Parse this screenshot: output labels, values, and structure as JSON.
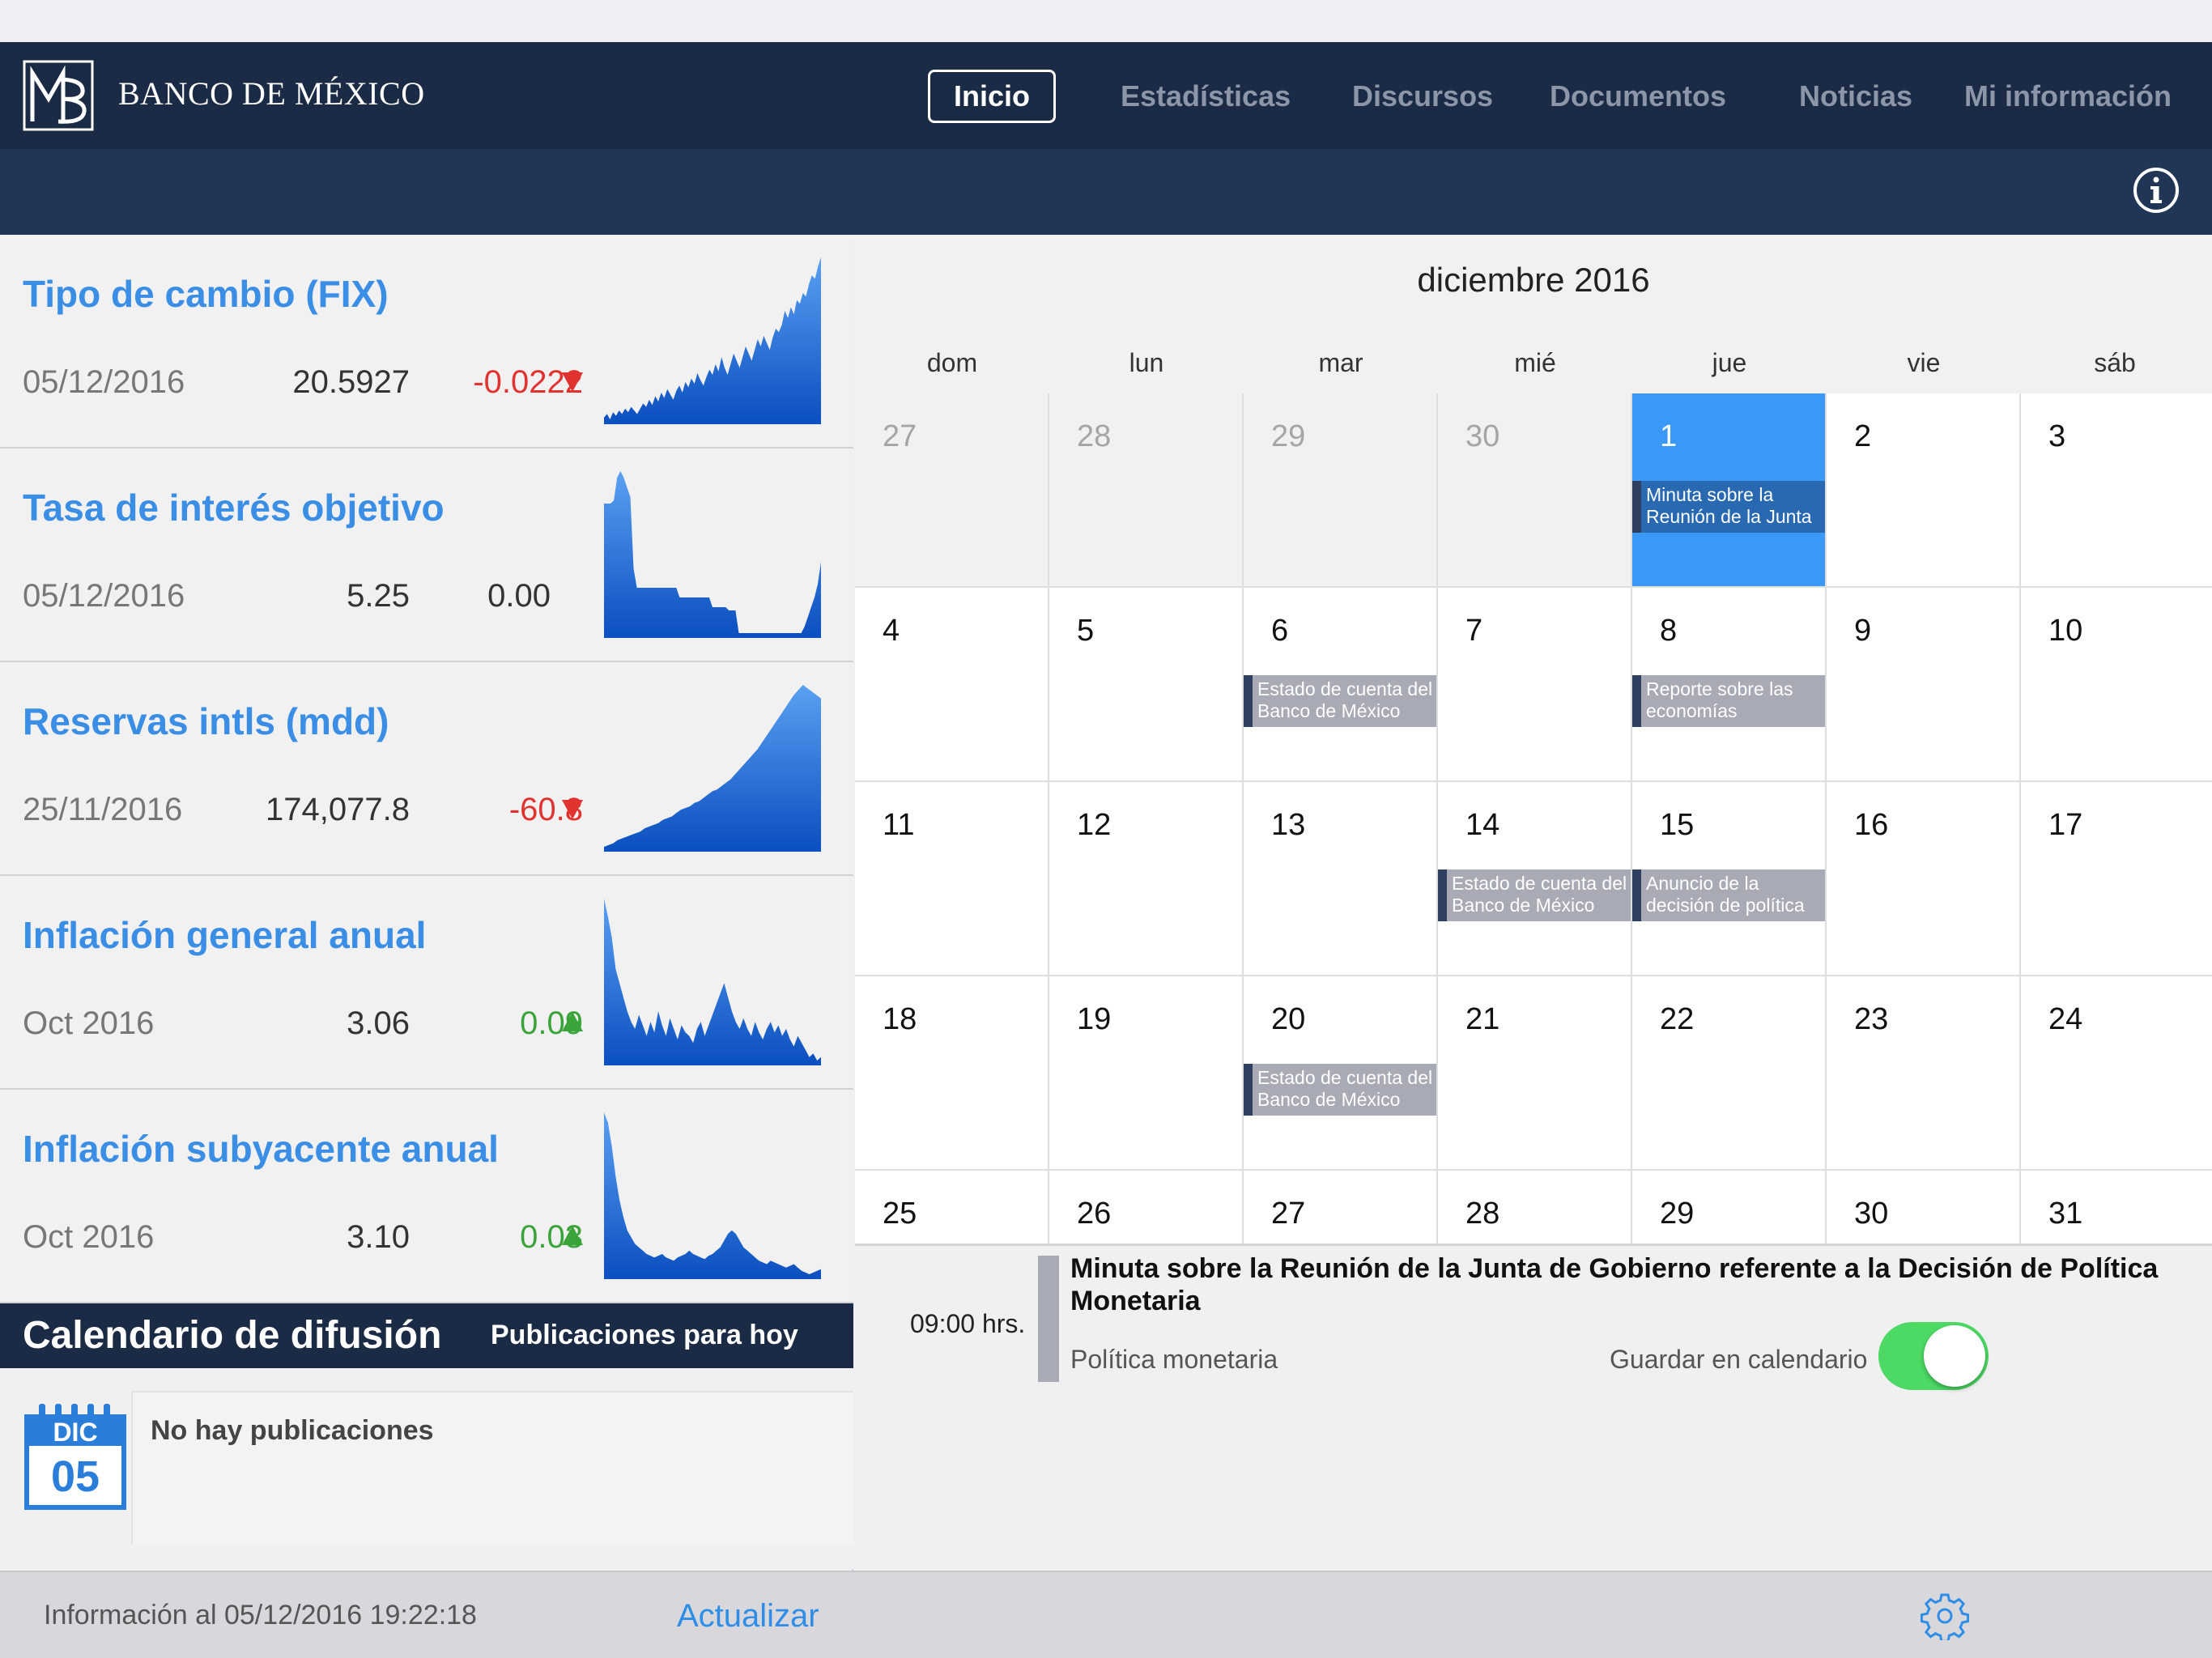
{
  "header": {
    "logo_text": "BANCO DE MÉXICO",
    "tabs": [
      {
        "label": "Inicio",
        "active": true
      },
      {
        "label": "Estadísticas",
        "active": false
      },
      {
        "label": "Discursos",
        "active": false
      },
      {
        "label": "Documentos",
        "active": false
      },
      {
        "label": "Noticias",
        "active": false
      },
      {
        "label": "Mi información",
        "active": false
      }
    ],
    "info_icon": "info-icon"
  },
  "indicators": [
    {
      "title": "Tipo de cambio (FIX)",
      "date": "05/12/2016",
      "value": "20.5927",
      "change": "-0.0222",
      "trend": "down",
      "sparkline": [
        10,
        12,
        9,
        13,
        11,
        14,
        12,
        15,
        13,
        16,
        14,
        12,
        15,
        18,
        16,
        20,
        17,
        22,
        19,
        24,
        21,
        26,
        23,
        20,
        25,
        28,
        24,
        30,
        27,
        32,
        29,
        35,
        31,
        28,
        33,
        37,
        34,
        40,
        36,
        44,
        38,
        34,
        40,
        46,
        42,
        38,
        44,
        50,
        46,
        42,
        48,
        54,
        50,
        56,
        52,
        48,
        55,
        60,
        58,
        62,
        70,
        66,
        72,
        68,
        76,
        74,
        80,
        78,
        85,
        90,
        88,
        95,
        100
      ]
    },
    {
      "title": "Tasa de interés objetivo",
      "date": "05/12/2016",
      "value": "5.25",
      "change": "0.00",
      "trend": "flat",
      "sparkline": [
        80,
        80,
        80,
        82,
        96,
        100,
        96,
        90,
        84,
        40,
        28,
        28,
        28,
        28,
        28,
        28,
        28,
        28,
        28,
        28,
        28,
        28,
        28,
        22,
        22,
        22,
        22,
        22,
        22,
        22,
        22,
        22,
        22,
        16,
        16,
        16,
        16,
        16,
        14,
        14,
        14,
        0,
        0,
        0,
        0,
        0,
        0,
        0,
        0,
        0,
        0,
        0,
        0,
        0,
        0,
        0,
        0,
        0,
        0,
        0,
        0,
        4,
        10,
        16,
        22,
        30,
        44
      ]
    },
    {
      "title": "Reservas intls (mdd)",
      "date": "25/11/2016",
      "value": "174,077.8",
      "change": "-60.8",
      "trend": "down",
      "sparkline": [
        4,
        5,
        6,
        8,
        9,
        10,
        11,
        12,
        13,
        15,
        16,
        17,
        18,
        20,
        21,
        22,
        24,
        26,
        27,
        28,
        30,
        31,
        33,
        35,
        37,
        38,
        40,
        42,
        44,
        47,
        50,
        53,
        56,
        59,
        62,
        66,
        70,
        74,
        78,
        82,
        86,
        90,
        94,
        97,
        100,
        98,
        96,
        94,
        92
      ]
    },
    {
      "title": "Inflación general anual",
      "date": "Oct 2016",
      "value": "3.06",
      "change": "0.09",
      "trend": "up",
      "sparkline": [
        100,
        90,
        78,
        60,
        52,
        44,
        36,
        30,
        26,
        34,
        28,
        22,
        30,
        24,
        36,
        28,
        22,
        32,
        26,
        20,
        28,
        24,
        22,
        18,
        26,
        30,
        22,
        28,
        34,
        40,
        46,
        52,
        44,
        36,
        30,
        26,
        32,
        26,
        22,
        30,
        24,
        20,
        26,
        30,
        24,
        28,
        22,
        26,
        20,
        16,
        22,
        18,
        14,
        10,
        12,
        8,
        10
      ]
    },
    {
      "title": "Inflación subyacente anual",
      "date": "Oct 2016",
      "value": "3.10",
      "change": "0.03",
      "trend": "up",
      "sparkline": [
        100,
        94,
        80,
        62,
        48,
        38,
        30,
        26,
        22,
        20,
        18,
        16,
        15,
        14,
        15,
        16,
        14,
        13,
        12,
        14,
        15,
        16,
        18,
        16,
        15,
        14,
        13,
        15,
        16,
        18,
        20,
        24,
        28,
        30,
        28,
        24,
        20,
        18,
        16,
        14,
        12,
        11,
        10,
        12,
        11,
        10,
        9,
        8,
        9,
        10,
        8,
        6,
        5,
        4,
        5,
        6,
        7
      ]
    }
  ],
  "calendar_panel": {
    "title": "Calendario de difusión",
    "subtitle": "Publicaciones para hoy",
    "empty_message": "No hay publicaciones",
    "date_month": "DIC",
    "date_day": "05"
  },
  "footer": {
    "updated": "Información al 05/12/2016 19:22:18",
    "refresh": "Actualizar",
    "settings_icon": "gear-icon"
  },
  "calendar": {
    "month_title": "diciembre 2016",
    "weekdays": [
      "dom",
      "lun",
      "mar",
      "mié",
      "jue",
      "vie",
      "sáb"
    ],
    "weeks": [
      [
        {
          "d": "27",
          "other": true
        },
        {
          "d": "28",
          "other": true
        },
        {
          "d": "29",
          "other": true
        },
        {
          "d": "30",
          "other": true
        },
        {
          "d": "1",
          "selected": true,
          "event": "Minuta sobre la Reunión de la Junta"
        },
        {
          "d": "2"
        },
        {
          "d": "3"
        }
      ],
      [
        {
          "d": "4"
        },
        {
          "d": "5"
        },
        {
          "d": "6",
          "event": "Estado de cuenta del Banco de México"
        },
        {
          "d": "7"
        },
        {
          "d": "8",
          "event": "Reporte sobre las economías"
        },
        {
          "d": "9"
        },
        {
          "d": "10"
        }
      ],
      [
        {
          "d": "11"
        },
        {
          "d": "12"
        },
        {
          "d": "13"
        },
        {
          "d": "14",
          "event": "Estado de cuenta del Banco de México"
        },
        {
          "d": "15",
          "event": "Anuncio de la decisión de política"
        },
        {
          "d": "16"
        },
        {
          "d": "17"
        }
      ],
      [
        {
          "d": "18"
        },
        {
          "d": "19"
        },
        {
          "d": "20",
          "event": "Estado de cuenta del Banco de México"
        },
        {
          "d": "21"
        },
        {
          "d": "22"
        },
        {
          "d": "23"
        },
        {
          "d": "24"
        }
      ],
      [
        {
          "d": "25"
        },
        {
          "d": "26"
        },
        {
          "d": "27"
        },
        {
          "d": "28"
        },
        {
          "d": "29"
        },
        {
          "d": "30"
        },
        {
          "d": "31"
        }
      ]
    ]
  },
  "event_detail": {
    "time": "09:00 hrs.",
    "title": "Minuta sobre la Reunión de la Junta de Gobierno referente a la Decisión de Política Monetaria",
    "category": "Política monetaria",
    "save_label": "Guardar en calendario",
    "save_enabled": true
  },
  "colors": {
    "navy": "#1b2a45",
    "accent_blue": "#3a8ee6",
    "selected_day": "#3a99f7",
    "down": "#e0322e",
    "up": "#3aa43a",
    "toggle_on": "#4cd964"
  }
}
